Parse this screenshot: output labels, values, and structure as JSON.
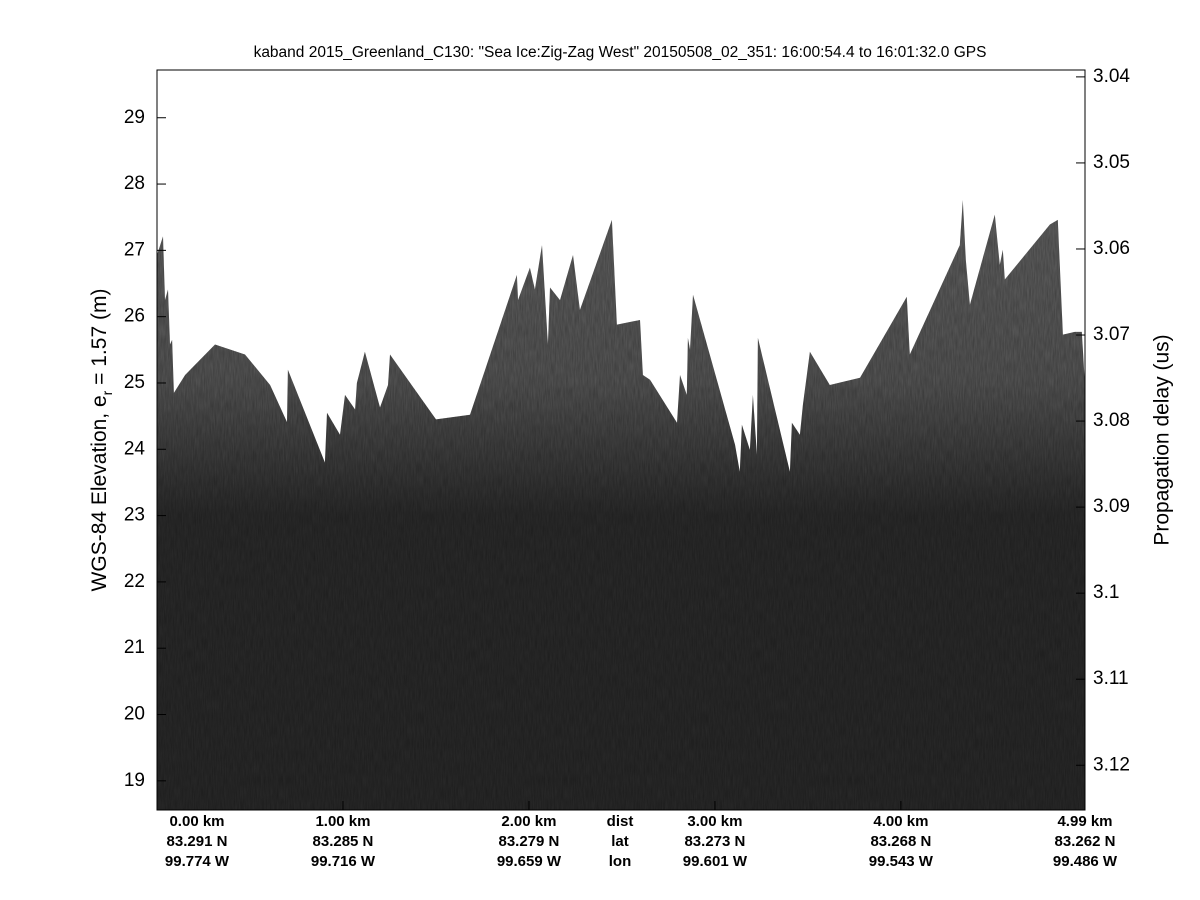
{
  "chart_data": {
    "type": "echogram",
    "title": "kaband 2015_Greenland_C130: \"Sea Ice:Zig-Zag West\"  20150508_02_351: 16:00:54.4 to 16:01:32.0 GPS",
    "ylabel": "WGS-84 Elevation, e",
    "ylabel_sub": "r",
    "ylabel_tail": " = 1.57 (m)",
    "y2label": "Propagation delay (us)",
    "xlim": [
      0,
      4.99
    ],
    "xticks": [
      {
        "value": 0,
        "label": "0.00 km"
      },
      {
        "value": 1,
        "label": "1.00 km"
      },
      {
        "value": 2,
        "label": "2.00 km"
      },
      {
        "value": 3,
        "label": "3.00 km"
      },
      {
        "value": 4,
        "label": "4.00 km"
      },
      {
        "value": 4.99,
        "label": "4.99 km"
      }
    ],
    "lat_labels": [
      "83.291 N",
      "83.285 N",
      "83.279 N",
      "83.273 N",
      "83.268 N",
      "83.262 N"
    ],
    "lon_labels": [
      "99.774 W",
      "99.716 W",
      "99.659 W",
      "99.601 W",
      "99.543 W",
      "99.486 W"
    ],
    "row_labels": [
      "dist",
      "lat",
      "lon"
    ],
    "ylim": [
      18.56,
      29.72
    ],
    "yticks": [
      19,
      20,
      21,
      22,
      23,
      24,
      25,
      26,
      27,
      28,
      29
    ],
    "y2lim": [
      3.1252,
      3.0392
    ],
    "y2ticks": [
      3.04,
      3.05,
      3.06,
      3.07,
      3.08,
      3.09,
      3.1,
      3.11,
      3.12
    ],
    "surface": {
      "x": [
        0,
        0.032,
        0.043,
        0.059,
        0.07,
        0.081,
        0.091,
        0.151,
        0.312,
        0.473,
        0.608,
        0.699,
        0.704,
        0.903,
        0.914,
        0.984,
        1.011,
        1.065,
        1.075,
        1.118,
        1.199,
        1.242,
        1.253,
        1.5,
        1.683,
        1.935,
        1.941,
        2.005,
        2.032,
        2.07,
        2.102,
        2.113,
        2.167,
        2.237,
        2.274,
        2.446,
        2.473,
        2.597,
        2.613,
        2.651,
        2.796,
        2.812,
        2.849,
        2.855,
        2.866,
        2.882,
        3.108,
        3.134,
        3.145,
        3.188,
        3.204,
        3.226,
        3.231,
        3.403,
        3.414,
        3.457,
        3.473,
        3.511,
        3.618,
        3.78,
        4.032,
        4.048,
        4.317,
        4.333,
        4.349,
        4.371,
        4.505,
        4.532,
        4.548,
        4.559,
        4.801,
        4.844,
        4.871,
        4.935,
        4.973,
        4.99
      ],
      "values": [
        26.93,
        27.21,
        26.25,
        26.41,
        25.58,
        25.65,
        24.85,
        25.12,
        25.58,
        25.43,
        24.97,
        24.41,
        25.2,
        23.8,
        24.55,
        24.22,
        24.82,
        24.6,
        25.0,
        25.47,
        24.63,
        24.97,
        25.43,
        24.45,
        24.52,
        26.63,
        26.25,
        26.74,
        26.41,
        27.08,
        25.58,
        26.44,
        26.25,
        26.93,
        26.1,
        27.46,
        25.88,
        25.95,
        25.12,
        25.05,
        24.4,
        25.12,
        24.82,
        25.68,
        25.5,
        26.33,
        24.07,
        23.66,
        24.37,
        23.99,
        24.82,
        23.92,
        25.68,
        23.66,
        24.4,
        24.22,
        24.67,
        25.47,
        24.97,
        25.08,
        26.3,
        25.43,
        27.08,
        27.76,
        26.86,
        26.18,
        27.54,
        26.78,
        27.01,
        26.56,
        27.39,
        27.46,
        25.73,
        25.77,
        25.77,
        24.97
      ]
    }
  }
}
